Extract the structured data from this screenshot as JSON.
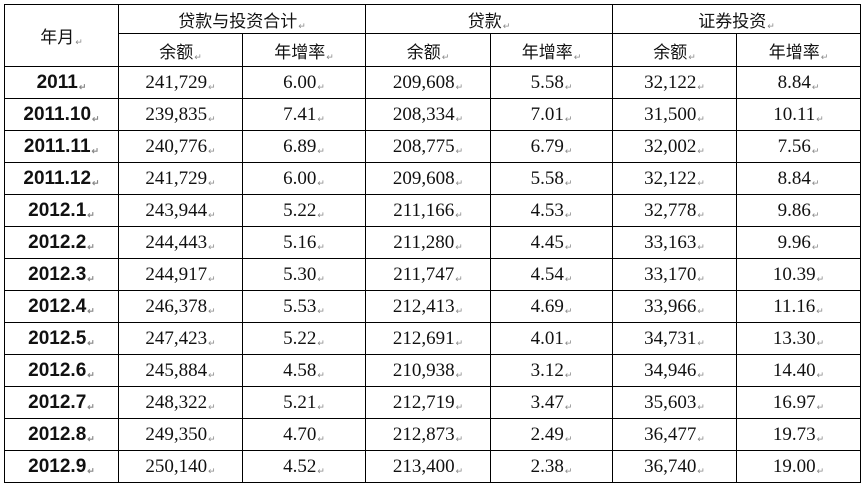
{
  "header": {
    "year_month": "年月",
    "groups": [
      "贷款与投资合计",
      "贷款",
      "证券投资"
    ],
    "sub": [
      "余额",
      "年增率"
    ]
  },
  "rows": [
    [
      "2011",
      "241,729",
      "6.00",
      "209,608",
      "5.58",
      "32,122",
      "8.84"
    ],
    [
      "2011.10",
      "239,835",
      "7.41",
      "208,334",
      "7.01",
      "31,500",
      "10.11"
    ],
    [
      "2011.11",
      "240,776",
      "6.89",
      "208,775",
      "6.79",
      "32,002",
      "7.56"
    ],
    [
      "2011.12",
      "241,729",
      "6.00",
      "209,608",
      "5.58",
      "32,122",
      "8.84"
    ],
    [
      "2012.1",
      "243,944",
      "5.22",
      "211,166",
      "4.53",
      "32,778",
      "9.86"
    ],
    [
      "2012.2",
      "244,443",
      "5.16",
      "211,280",
      "4.45",
      "33,163",
      "9.96"
    ],
    [
      "2012.3",
      "244,917",
      "5.30",
      "211,747",
      "4.54",
      "33,170",
      "10.39"
    ],
    [
      "2012.4",
      "246,378",
      "5.53",
      "212,413",
      "4.69",
      "33,966",
      "11.16"
    ],
    [
      "2012.5",
      "247,423",
      "5.22",
      "212,691",
      "4.01",
      "34,731",
      "13.30"
    ],
    [
      "2012.6",
      "245,884",
      "4.58",
      "210,938",
      "3.12",
      "34,946",
      "14.40"
    ],
    [
      "2012.7",
      "248,322",
      "5.21",
      "212,719",
      "3.47",
      "35,603",
      "16.97"
    ],
    [
      "2012.8",
      "249,350",
      "4.70",
      "212,873",
      "2.49",
      "36,477",
      "19.73"
    ],
    [
      "2012.9",
      "250,140",
      "4.52",
      "213,400",
      "2.38",
      "36,740",
      "19.00"
    ]
  ]
}
